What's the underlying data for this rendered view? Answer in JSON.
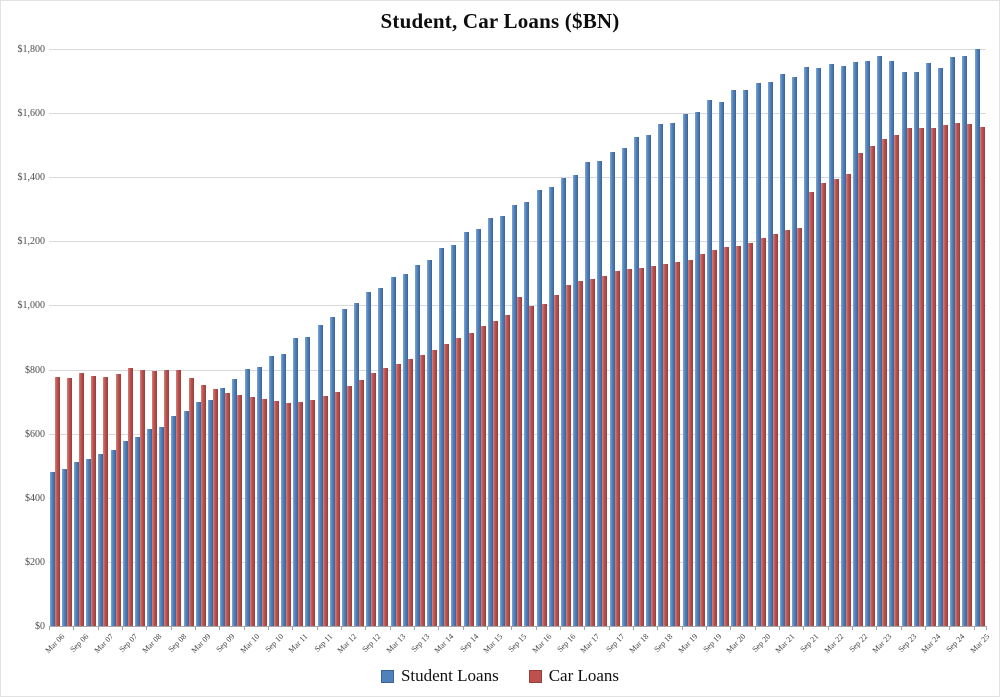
{
  "chart_data": {
    "type": "bar",
    "title": "Student, Car Loans ($BN)",
    "xlabel": "",
    "ylabel": "",
    "ylim": [
      0,
      1800
    ],
    "ytick_step": 200,
    "ytick_labels_top_to_bottom": [
      "$1,800",
      "$1,600",
      "$1,400",
      "$1,200",
      "$1,000",
      "$800",
      "$600",
      "$400",
      "$200",
      "$0"
    ],
    "grid": "horizontal",
    "legend_position": "bottom",
    "xtick_shown_every": 2,
    "categories": [
      "Mar 06",
      "Jun 06",
      "Sep 06",
      "Dec 06",
      "Mar 07",
      "Jun 07",
      "Sep 07",
      "Dec 07",
      "Mar 08",
      "Jun 08",
      "Sep 08",
      "Dec 08",
      "Mar 09",
      "Jun 09",
      "Sep 09",
      "Dec 09",
      "Mar 10",
      "Jun 10",
      "Sep 10",
      "Dec 10",
      "Mar 11",
      "Jun 11",
      "Sep 11",
      "Dec 11",
      "Mar 12",
      "Jun 12",
      "Sep 12",
      "Dec 12",
      "Mar 13",
      "Jun 13",
      "Sep 13",
      "Dec 13",
      "Mar 14",
      "Jun 14",
      "Sep 14",
      "Dec 14",
      "Mar 15",
      "Jun 15",
      "Sep 15",
      "Dec 15",
      "Mar 16",
      "Jun 16",
      "Sep 16",
      "Dec 16",
      "Mar 17",
      "Jun 17",
      "Sep 17",
      "Dec 17",
      "Mar 18",
      "Jun 18",
      "Sep 18",
      "Dec 18",
      "Mar 19",
      "Jun 19",
      "Sep 19",
      "Dec 19",
      "Mar 20",
      "Jun 20",
      "Sep 20",
      "Dec 20",
      "Mar 21",
      "Jun 21",
      "Sep 21",
      "Dec 21",
      "Mar 22",
      "Jun 22",
      "Sep 22",
      "Dec 22",
      "Mar 23",
      "Jun 23",
      "Sep 23",
      "Dec 23",
      "Mar 24",
      "Jun 24",
      "Sep 24",
      "Dec 24",
      "Mar 25"
    ],
    "series": [
      {
        "name": "Student Loans",
        "color": "#4F81BD",
        "values": [
          480,
          490,
          511,
          521,
          538,
          549,
          578,
          591,
          615,
          622,
          656,
          670,
          700,
          705,
          741,
          772,
          803,
          809,
          841,
          850,
          897,
          903,
          938,
          963,
          990,
          1007,
          1041,
          1053,
          1088,
          1097,
          1125,
          1141,
          1178,
          1188,
          1228,
          1238,
          1272,
          1278,
          1313,
          1322,
          1359,
          1369,
          1397,
          1406,
          1447,
          1450,
          1478,
          1491,
          1525,
          1531,
          1566,
          1569,
          1597,
          1605,
          1640,
          1636,
          1672,
          1673,
          1693,
          1698,
          1722,
          1714,
          1745,
          1741,
          1753,
          1748,
          1760,
          1762,
          1778,
          1763,
          1729,
          1727,
          1757,
          1740,
          1776,
          1778,
          1800
        ]
      },
      {
        "name": "Car Loans",
        "color": "#C0504D",
        "values": [
          778,
          773,
          790,
          781,
          778,
          787,
          806,
          800,
          797,
          798,
          800,
          775,
          753,
          740,
          728,
          720,
          713,
          707,
          701,
          696,
          698,
          706,
          718,
          731,
          748,
          768,
          788,
          804,
          818,
          832,
          846,
          862,
          880,
          898,
          915,
          935,
          952,
          970,
          1027,
          998,
          1006,
          1034,
          1064,
          1077,
          1081,
          1091,
          1109,
          1115,
          1118,
          1122,
          1128,
          1135,
          1141,
          1159,
          1174,
          1182,
          1184,
          1194,
          1209,
          1222,
          1234,
          1242,
          1355,
          1381,
          1394,
          1410,
          1475,
          1497,
          1518,
          1531,
          1553,
          1554,
          1555,
          1562,
          1568,
          1565,
          1556
        ]
      }
    ]
  },
  "legend": {
    "student_label": "Student Loans",
    "car_label": "Car Loans"
  }
}
